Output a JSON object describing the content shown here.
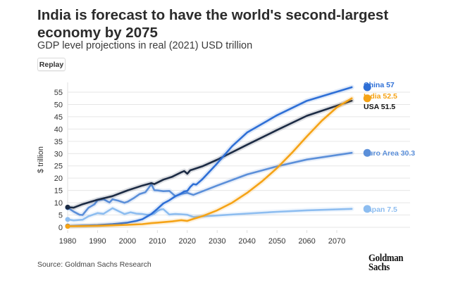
{
  "header": {
    "title": "India is forecast to have the world's second-largest economy by 2075",
    "subtitle": "GDP level projections in real (2021) USD trillion",
    "replay_label": "Replay"
  },
  "footer": {
    "source": "Source: Goldman Sachs Research",
    "logo_line1": "Goldman",
    "logo_line2": "Sachs"
  },
  "chart_data": {
    "type": "line",
    "title": "India is forecast to have the world's second-largest economy by 2075",
    "subtitle": "GDP level projections in real (2021) USD trillion",
    "xlabel": "",
    "ylabel": "$ trillion",
    "xlim": [
      1980,
      2075
    ],
    "ylim": [
      0,
      57
    ],
    "xticks": [
      1980,
      1990,
      2000,
      2010,
      2020,
      2030,
      2040,
      2050,
      2060,
      2070
    ],
    "yticks": [
      0,
      5,
      10,
      15,
      20,
      25,
      30,
      35,
      40,
      45,
      50,
      55
    ],
    "grid": true,
    "legend": "direct labels at line ends (right)",
    "series": [
      {
        "name": "Japan",
        "label": "Japan 7.5",
        "color": "#8dbdf0",
        "x": [
          1980,
          1982,
          1985,
          1987,
          1990,
          1992,
          1995,
          1997,
          1999,
          2001,
          2003,
          2005,
          2007,
          2009,
          2010,
          2011,
          2012,
          2014,
          2016,
          2018,
          2020,
          2022,
          2030,
          2040,
          2050,
          2060,
          2075
        ],
        "y": [
          3.2,
          2.8,
          3.1,
          4.5,
          5.8,
          5.5,
          7.8,
          6.6,
          5.4,
          6.1,
          5.6,
          5.4,
          5.0,
          5.6,
          6.6,
          7.2,
          7.4,
          5.2,
          5.4,
          5.3,
          5.1,
          4.2,
          4.8,
          5.6,
          6.3,
          6.9,
          7.5
        ]
      },
      {
        "name": "Euro Area",
        "label": "Euro Area 30.3",
        "color": "#5b8fd9",
        "x": [
          1980,
          1982,
          1984,
          1985,
          1987,
          1989,
          1990,
          1992,
          1994,
          1995,
          1997,
          1999,
          2000,
          2002,
          2004,
          2006,
          2008,
          2009,
          2010,
          2012,
          2014,
          2016,
          2018,
          2020,
          2022,
          2030,
          2040,
          2050,
          2060,
          2075
        ],
        "y": [
          8.0,
          6.4,
          5.1,
          5.0,
          8.0,
          9.4,
          11.0,
          11.4,
          10.1,
          11.4,
          10.8,
          10.0,
          10.4,
          11.8,
          13.5,
          14.3,
          17.5,
          15.1,
          15.0,
          14.7,
          14.8,
          12.7,
          13.6,
          14.0,
          13.2,
          17.0,
          21.5,
          24.8,
          27.6,
          30.3
        ]
      },
      {
        "name": "USA",
        "label": "USA 51.5",
        "color": "#1c2b44",
        "x": [
          1980,
          1982,
          1985,
          1990,
          1995,
          2000,
          2005,
          2008,
          2009,
          2012,
          2015,
          2018,
          2019,
          2020,
          2021,
          2022,
          2025,
          2030,
          2040,
          2050,
          2060,
          2075
        ],
        "y": [
          8.2,
          8.0,
          9.4,
          11.2,
          12.7,
          15.0,
          17.0,
          18.0,
          17.6,
          19.4,
          20.6,
          22.4,
          22.9,
          21.8,
          23.2,
          23.6,
          24.8,
          27.5,
          33.6,
          39.6,
          45.4,
          51.5
        ]
      },
      {
        "name": "China",
        "label": "China 57",
        "color": "#2e6fd6",
        "x": [
          1980,
          1985,
          1990,
          1995,
          2000,
          2003,
          2005,
          2008,
          2010,
          2012,
          2014,
          2016,
          2018,
          2019,
          2020,
          2021,
          2022,
          2023,
          2025,
          2030,
          2035,
          2040,
          2050,
          2060,
          2075
        ],
        "y": [
          0.5,
          0.7,
          0.9,
          1.3,
          1.9,
          2.6,
          3.3,
          5.4,
          7.5,
          9.7,
          11.0,
          12.6,
          13.8,
          14.6,
          14.8,
          16.4,
          17.6,
          17.4,
          19.5,
          26.0,
          33.0,
          38.6,
          45.6,
          51.5,
          57.0
        ]
      },
      {
        "name": "India",
        "label": "India 52.5",
        "color": "#f5a316",
        "x": [
          1980,
          1985,
          1990,
          1995,
          2000,
          2005,
          2008,
          2010,
          2012,
          2015,
          2018,
          2020,
          2022,
          2025,
          2030,
          2035,
          2040,
          2045,
          2050,
          2055,
          2060,
          2065,
          2070,
          2075
        ],
        "y": [
          0.4,
          0.5,
          0.6,
          0.8,
          1.0,
          1.3,
          1.7,
          1.9,
          2.1,
          2.4,
          2.9,
          2.6,
          3.4,
          4.5,
          6.9,
          10.0,
          14.0,
          18.7,
          24.1,
          30.3,
          37.0,
          43.4,
          48.8,
          52.5
        ]
      }
    ]
  }
}
